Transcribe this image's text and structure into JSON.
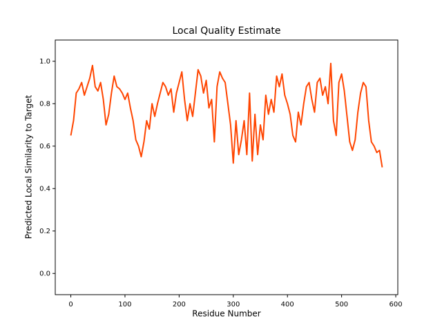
{
  "chart_data": {
    "type": "line",
    "title": "Local Quality Estimate",
    "x_label": "Residue Number",
    "y_label": "Predicted Local Similarity to Target",
    "x": [
      0,
      5,
      10,
      15,
      20,
      25,
      30,
      35,
      40,
      45,
      50,
      55,
      60,
      65,
      70,
      75,
      80,
      85,
      90,
      95,
      100,
      105,
      110,
      115,
      120,
      125,
      130,
      135,
      140,
      145,
      150,
      155,
      160,
      165,
      170,
      175,
      180,
      185,
      190,
      195,
      200,
      205,
      210,
      215,
      220,
      225,
      230,
      235,
      240,
      245,
      250,
      255,
      260,
      265,
      270,
      275,
      280,
      285,
      290,
      295,
      300,
      305,
      310,
      315,
      320,
      325,
      330,
      335,
      340,
      345,
      350,
      355,
      360,
      365,
      370,
      375,
      380,
      385,
      390,
      395,
      400,
      405,
      410,
      415,
      420,
      425,
      430,
      435,
      440,
      445,
      450,
      455,
      460,
      465,
      470,
      475,
      480,
      485,
      490,
      495,
      500,
      505,
      510,
      515,
      520,
      525,
      530,
      535,
      540,
      545,
      550,
      555,
      560,
      565,
      570,
      575
    ],
    "series": [
      {
        "color": "#ff4500",
        "values": [
          0.65,
          0.72,
          0.85,
          0.87,
          0.9,
          0.84,
          0.88,
          0.92,
          0.98,
          0.88,
          0.86,
          0.9,
          0.82,
          0.7,
          0.75,
          0.85,
          0.93,
          0.88,
          0.87,
          0.85,
          0.82,
          0.85,
          0.78,
          0.72,
          0.63,
          0.6,
          0.55,
          0.62,
          0.72,
          0.68,
          0.8,
          0.74,
          0.8,
          0.85,
          0.9,
          0.88,
          0.84,
          0.87,
          0.76,
          0.85,
          0.9,
          0.95,
          0.82,
          0.72,
          0.8,
          0.74,
          0.85,
          0.96,
          0.93,
          0.85,
          0.91,
          0.78,
          0.82,
          0.62,
          0.88,
          0.95,
          0.92,
          0.9,
          0.8,
          0.7,
          0.52,
          0.72,
          0.56,
          0.63,
          0.72,
          0.56,
          0.85,
          0.53,
          0.75,
          0.56,
          0.7,
          0.63,
          0.84,
          0.75,
          0.82,
          0.76,
          0.93,
          0.88,
          0.94,
          0.84,
          0.8,
          0.75,
          0.65,
          0.62,
          0.76,
          0.7,
          0.8,
          0.88,
          0.9,
          0.82,
          0.76,
          0.9,
          0.92,
          0.84,
          0.88,
          0.8,
          0.99,
          0.72,
          0.65,
          0.9,
          0.94,
          0.86,
          0.74,
          0.62,
          0.58,
          0.63,
          0.76,
          0.85,
          0.9,
          0.88,
          0.72,
          0.62,
          0.6,
          0.57,
          0.58,
          0.5
        ]
      }
    ],
    "xlim": [
      -28.75,
      603.75
    ],
    "xticks": [
      0,
      100,
      200,
      300,
      400,
      500,
      600
    ],
    "ylim": [
      -0.1,
      1.1
    ],
    "yticks": [
      {
        "value": 0,
        "label": "0.0"
      },
      0.2,
      0.4,
      0.6,
      0.8,
      {
        "value": 1,
        "label": "1.0"
      }
    ]
  }
}
